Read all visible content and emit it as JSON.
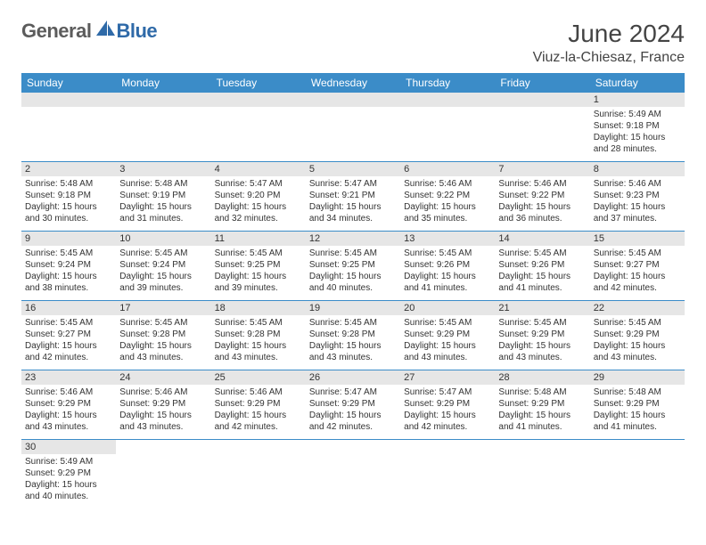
{
  "brand": {
    "part1": "General",
    "part2": "Blue"
  },
  "title": {
    "month": "June 2024",
    "location": "Viuz-la-Chiesaz, France"
  },
  "colors": {
    "header_bg": "#3b8cc8",
    "header_text": "#ffffff",
    "daynum_bg": "#e6e6e6",
    "border": "#3b8cc8",
    "brand_gray": "#5c5c5c",
    "brand_blue": "#2f6aa8"
  },
  "weekdays": [
    "Sunday",
    "Monday",
    "Tuesday",
    "Wednesday",
    "Thursday",
    "Friday",
    "Saturday"
  ],
  "weeks": [
    [
      null,
      null,
      null,
      null,
      null,
      null,
      {
        "n": "1",
        "sr": "5:49 AM",
        "ss": "9:18 PM",
        "dl": "15 hours and 28 minutes."
      }
    ],
    [
      {
        "n": "2",
        "sr": "5:48 AM",
        "ss": "9:18 PM",
        "dl": "15 hours and 30 minutes."
      },
      {
        "n": "3",
        "sr": "5:48 AM",
        "ss": "9:19 PM",
        "dl": "15 hours and 31 minutes."
      },
      {
        "n": "4",
        "sr": "5:47 AM",
        "ss": "9:20 PM",
        "dl": "15 hours and 32 minutes."
      },
      {
        "n": "5",
        "sr": "5:47 AM",
        "ss": "9:21 PM",
        "dl": "15 hours and 34 minutes."
      },
      {
        "n": "6",
        "sr": "5:46 AM",
        "ss": "9:22 PM",
        "dl": "15 hours and 35 minutes."
      },
      {
        "n": "7",
        "sr": "5:46 AM",
        "ss": "9:22 PM",
        "dl": "15 hours and 36 minutes."
      },
      {
        "n": "8",
        "sr": "5:46 AM",
        "ss": "9:23 PM",
        "dl": "15 hours and 37 minutes."
      }
    ],
    [
      {
        "n": "9",
        "sr": "5:45 AM",
        "ss": "9:24 PM",
        "dl": "15 hours and 38 minutes."
      },
      {
        "n": "10",
        "sr": "5:45 AM",
        "ss": "9:24 PM",
        "dl": "15 hours and 39 minutes."
      },
      {
        "n": "11",
        "sr": "5:45 AM",
        "ss": "9:25 PM",
        "dl": "15 hours and 39 minutes."
      },
      {
        "n": "12",
        "sr": "5:45 AM",
        "ss": "9:25 PM",
        "dl": "15 hours and 40 minutes."
      },
      {
        "n": "13",
        "sr": "5:45 AM",
        "ss": "9:26 PM",
        "dl": "15 hours and 41 minutes."
      },
      {
        "n": "14",
        "sr": "5:45 AM",
        "ss": "9:26 PM",
        "dl": "15 hours and 41 minutes."
      },
      {
        "n": "15",
        "sr": "5:45 AM",
        "ss": "9:27 PM",
        "dl": "15 hours and 42 minutes."
      }
    ],
    [
      {
        "n": "16",
        "sr": "5:45 AM",
        "ss": "9:27 PM",
        "dl": "15 hours and 42 minutes."
      },
      {
        "n": "17",
        "sr": "5:45 AM",
        "ss": "9:28 PM",
        "dl": "15 hours and 43 minutes."
      },
      {
        "n": "18",
        "sr": "5:45 AM",
        "ss": "9:28 PM",
        "dl": "15 hours and 43 minutes."
      },
      {
        "n": "19",
        "sr": "5:45 AM",
        "ss": "9:28 PM",
        "dl": "15 hours and 43 minutes."
      },
      {
        "n": "20",
        "sr": "5:45 AM",
        "ss": "9:29 PM",
        "dl": "15 hours and 43 minutes."
      },
      {
        "n": "21",
        "sr": "5:45 AM",
        "ss": "9:29 PM",
        "dl": "15 hours and 43 minutes."
      },
      {
        "n": "22",
        "sr": "5:45 AM",
        "ss": "9:29 PM",
        "dl": "15 hours and 43 minutes."
      }
    ],
    [
      {
        "n": "23",
        "sr": "5:46 AM",
        "ss": "9:29 PM",
        "dl": "15 hours and 43 minutes."
      },
      {
        "n": "24",
        "sr": "5:46 AM",
        "ss": "9:29 PM",
        "dl": "15 hours and 43 minutes."
      },
      {
        "n": "25",
        "sr": "5:46 AM",
        "ss": "9:29 PM",
        "dl": "15 hours and 42 minutes."
      },
      {
        "n": "26",
        "sr": "5:47 AM",
        "ss": "9:29 PM",
        "dl": "15 hours and 42 minutes."
      },
      {
        "n": "27",
        "sr": "5:47 AM",
        "ss": "9:29 PM",
        "dl": "15 hours and 42 minutes."
      },
      {
        "n": "28",
        "sr": "5:48 AM",
        "ss": "9:29 PM",
        "dl": "15 hours and 41 minutes."
      },
      {
        "n": "29",
        "sr": "5:48 AM",
        "ss": "9:29 PM",
        "dl": "15 hours and 41 minutes."
      }
    ],
    [
      {
        "n": "30",
        "sr": "5:49 AM",
        "ss": "9:29 PM",
        "dl": "15 hours and 40 minutes."
      },
      null,
      null,
      null,
      null,
      null,
      null
    ]
  ],
  "labels": {
    "sunrise": "Sunrise:",
    "sunset": "Sunset:",
    "daylight": "Daylight:"
  }
}
